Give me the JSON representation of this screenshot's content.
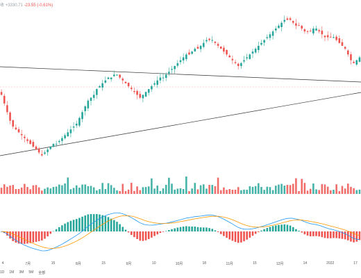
{
  "header": {
    "symbol_fragment": "收",
    "price_change": "+3330.71",
    "pct_change": "-23.55 (-0.61%)"
  },
  "toolbar": {
    "ranges": [
      "1D",
      "1M",
      "3M",
      "5M",
      "全部"
    ]
  },
  "x_labels": [
    "4",
    "7月",
    "15",
    "8月",
    "15",
    "9月",
    "10",
    "10月",
    "18",
    "11月",
    "15",
    "12月",
    "14",
    "2022",
    "17"
  ],
  "colors": {
    "up": "#26a69a",
    "down": "#ef5350",
    "trendline": "#333333",
    "macd_line": "#2196f3",
    "signal_line": "#ff9800",
    "price_ref": "#f4a7a6"
  },
  "chart_data": {
    "type": "candlestick",
    "panels": [
      "price",
      "volume",
      "macd"
    ],
    "price_closes": [
      60,
      57,
      54,
      51,
      49,
      48,
      47,
      46,
      45,
      44,
      43,
      42,
      41,
      40,
      39,
      40,
      41,
      42,
      43,
      43,
      44,
      45,
      46,
      47,
      48,
      49,
      50,
      52,
      54,
      56,
      58,
      59,
      60,
      62,
      63,
      64,
      65,
      66,
      66,
      67,
      67,
      66,
      65,
      64,
      63,
      62,
      61,
      60,
      59,
      60,
      61,
      62,
      63,
      64,
      65,
      66,
      66,
      67,
      68,
      69,
      70,
      71,
      72,
      73,
      74,
      74,
      75,
      76,
      76,
      77,
      78,
      79,
      79,
      79,
      78,
      77,
      76,
      75,
      74,
      73,
      72,
      71,
      70,
      71,
      72,
      73,
      74,
      75,
      76,
      77,
      78,
      79,
      80,
      81,
      82,
      83,
      84,
      85,
      86,
      86,
      86,
      85,
      84,
      84,
      83,
      82,
      82,
      82,
      83,
      83,
      82,
      81,
      80,
      80,
      80,
      80,
      79,
      78,
      77,
      76,
      74,
      72,
      71,
      72,
      73
    ]
  }
}
